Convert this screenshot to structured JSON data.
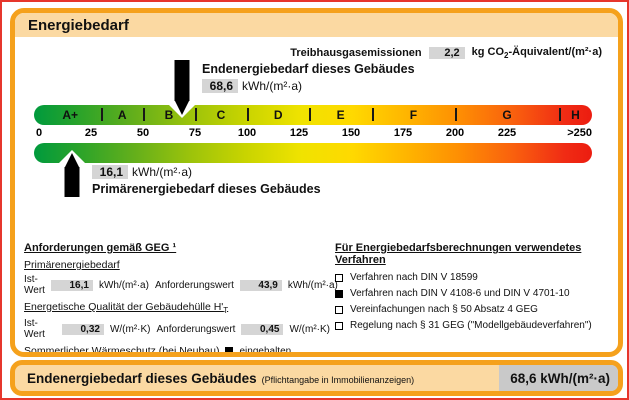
{
  "colors": {
    "frame": "#e6362c",
    "border_orange": "#f5a11c",
    "header_bg": "#fbd9a2",
    "value_box": "#d5d5d5",
    "footer_value_box": "#c9c9c9"
  },
  "header": {
    "title": "Energiebedarf"
  },
  "emissions": {
    "label": "Treibhausgasemissionen",
    "value": "2,2",
    "unit_pre": "kg CO",
    "unit_sub": "2",
    "unit_post": "-Äquivalent/(m²·a)"
  },
  "end_marker": {
    "title": "Endenergiebedarf dieses Gebäudes",
    "value": "68,6",
    "unit": "kWh/(m²·a)"
  },
  "primary_marker": {
    "value": "16,1",
    "unit": "kWh/(m²·a)",
    "title": "Primärenergiebedarf dieses Gebäudes"
  },
  "scale": {
    "min": 0,
    "max": 250,
    "tick_step": 25,
    "classes": [
      {
        "label": "A+",
        "from": 0,
        "to": 30
      },
      {
        "label": "A",
        "from": 30,
        "to": 50
      },
      {
        "label": "B",
        "from": 50,
        "to": 75
      },
      {
        "label": "C",
        "from": 75,
        "to": 100
      },
      {
        "label": "D",
        "from": 100,
        "to": 130
      },
      {
        "label": "E",
        "from": 130,
        "to": 160
      },
      {
        "label": "F",
        "from": 160,
        "to": 200
      },
      {
        "label": "G",
        "from": 200,
        "to": 250
      },
      {
        "label": "H",
        "from": 250,
        "open": true
      }
    ],
    "ticks": [
      "0",
      "25",
      "50",
      "75",
      "100",
      "125",
      "150",
      "175",
      "200",
      "225"
    ],
    "end_tick": ">250",
    "markers": [
      {
        "name": "Endenergiebedarf",
        "value": 68.6
      },
      {
        "name": "Primärenergiebedarf",
        "value": 16.1
      }
    ]
  },
  "requirements": {
    "heading": "Anforderungen gemäß GEG ¹",
    "sub1": "Primärenergiebedarf",
    "row1": {
      "label": "Ist-Wert",
      "value": "16,1",
      "unit": "kWh/(m²·a)",
      "label2": "Anforderungswert",
      "value2": "43,9",
      "unit2": "kWh/(m²·a)"
    },
    "sub2_pre": "Energetische Qualität der Gebäudehülle H'",
    "sub2_sub": "T",
    "row2": {
      "label": "Ist-Wert",
      "value": "0,32",
      "unit": "W/(m²·K)",
      "label2": "Anforderungswert",
      "value2": "0,45",
      "unit2": "W/(m²·K)"
    },
    "summer": {
      "label": "Sommerlicher Wärmeschutz (bei Neubau)",
      "status": "eingehalten"
    }
  },
  "method": {
    "heading": "Für Energiebedarfsberechnungen verwendetes Verfahren",
    "items": [
      {
        "label": "Verfahren nach DIN V 18599",
        "checked": false
      },
      {
        "label": "Verfahren nach DIN V 4108-6 und DIN V 4701-10",
        "checked": true
      },
      {
        "label": "Vereinfachungen nach § 50 Absatz 4 GEG",
        "checked": false
      },
      {
        "label": "Regelung nach § 31 GEG (\"Modellgebäudeverfahren\")",
        "checked": false
      }
    ]
  },
  "footer": {
    "title": "Endenergiebedarf dieses Gebäudes",
    "note": "(Pflichtangabe in Immobilienanzeigen)",
    "value": "68,6 kWh/(m²·a)"
  }
}
